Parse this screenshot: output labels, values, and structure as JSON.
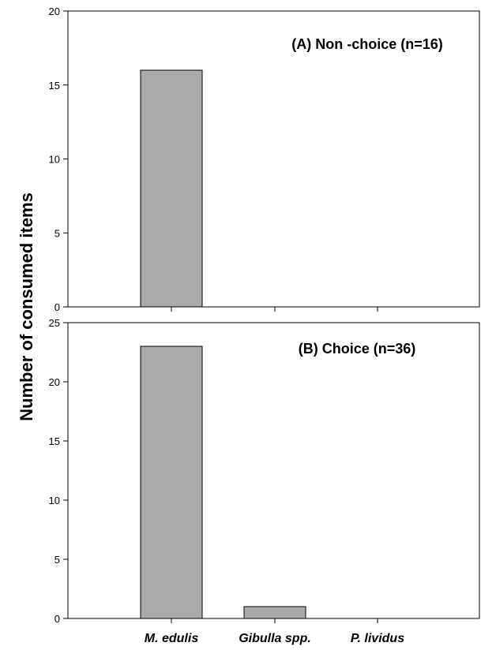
{
  "chart_data": {
    "type": "bar",
    "ylabel": "Number of consumed items",
    "categories": [
      "M. edulis",
      "Gibulla spp.",
      "P. lividus"
    ],
    "bar_color": "#aaaaaa",
    "panels": [
      {
        "title": "(A) Non -choice (n=16)",
        "values": [
          16,
          0,
          0
        ],
        "ylim": [
          0,
          20
        ],
        "yticks": [
          0,
          5,
          10,
          15,
          20
        ]
      },
      {
        "title": "(B) Choice (n=36)",
        "values": [
          23,
          1,
          0
        ],
        "ylim": [
          0,
          25
        ],
        "yticks": [
          0,
          5,
          10,
          15,
          20,
          25
        ]
      }
    ]
  }
}
